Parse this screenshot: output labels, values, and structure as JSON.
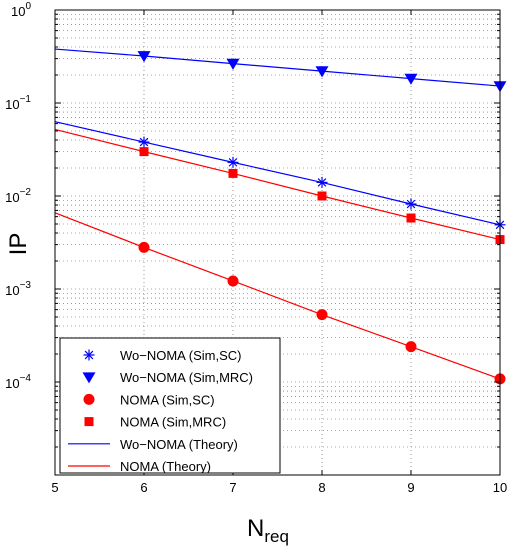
{
  "chart_data": {
    "type": "line",
    "title": "",
    "xlabel": "N",
    "xlabel_sub": "req",
    "ylabel": "IP",
    "xlim": [
      5,
      10
    ],
    "ylim": [
      1e-05,
      1
    ],
    "yscale": "log",
    "grid": true,
    "x_ticks": [
      "5",
      "6",
      "7",
      "8",
      "9",
      "10"
    ],
    "y_ticks": [
      {
        "value": 1,
        "base": "10",
        "exp": "0"
      },
      {
        "value": 0.1,
        "base": "10",
        "exp": "−1"
      },
      {
        "value": 0.01,
        "base": "10",
        "exp": "−2"
      },
      {
        "value": 0.001,
        "base": "10",
        "exp": "−3"
      },
      {
        "value": 0.0001,
        "base": "10",
        "exp": "−4"
      }
    ],
    "legend_position": "bottom-left",
    "colors": {
      "blue": "#0000ff",
      "red": "#ff0000"
    },
    "series": [
      {
        "name": "Wo−NOMA (Sim,SC)",
        "kind": "markers",
        "marker": "asterisk",
        "color": "#0000ff",
        "x": [
          6,
          7,
          8,
          9,
          10
        ],
        "y": [
          0.038,
          0.023,
          0.014,
          0.0082,
          0.0049
        ]
      },
      {
        "name": "Wo−NOMA (Sim,MRC)",
        "kind": "markers",
        "marker": "triangle-down",
        "color": "#0000ff",
        "x": [
          6,
          7,
          8,
          9,
          10
        ],
        "y": [
          0.32,
          0.265,
          0.22,
          0.183,
          0.152
        ]
      },
      {
        "name": "NOMA (Sim,SC)",
        "kind": "markers",
        "marker": "circle",
        "color": "#ff0000",
        "x": [
          6,
          7,
          8,
          9,
          10
        ],
        "y": [
          0.0028,
          0.00122,
          0.00053,
          0.00024,
          0.000108
        ]
      },
      {
        "name": "NOMA (Sim,MRC)",
        "kind": "markers",
        "marker": "square",
        "color": "#ff0000",
        "x": [
          6,
          7,
          8,
          9,
          10
        ],
        "y": [
          0.03,
          0.0175,
          0.01,
          0.0058,
          0.0034
        ]
      },
      {
        "name": "Wo−NOMA (Theory)",
        "kind": "lines",
        "color": "#0000ff",
        "lines": [
          {
            "x": [
              5,
              6,
              7,
              8,
              9,
              10
            ],
            "y": [
              0.38,
              0.32,
              0.265,
              0.22,
              0.183,
              0.152
            ]
          },
          {
            "x": [
              5,
              6,
              7,
              8,
              9,
              10
            ],
            "y": [
              0.063,
              0.038,
              0.023,
              0.014,
              0.0082,
              0.0049
            ]
          }
        ]
      },
      {
        "name": "NOMA (Theory)",
        "kind": "lines",
        "color": "#ff0000",
        "lines": [
          {
            "x": [
              5,
              6,
              7,
              8,
              9,
              10
            ],
            "y": [
              0.052,
              0.03,
              0.0175,
              0.01,
              0.0058,
              0.0034
            ]
          },
          {
            "x": [
              5,
              6,
              7,
              8,
              9,
              10
            ],
            "y": [
              0.0066,
              0.0028,
              0.00122,
              0.00053,
              0.00024,
              0.000108
            ]
          }
        ]
      }
    ]
  }
}
